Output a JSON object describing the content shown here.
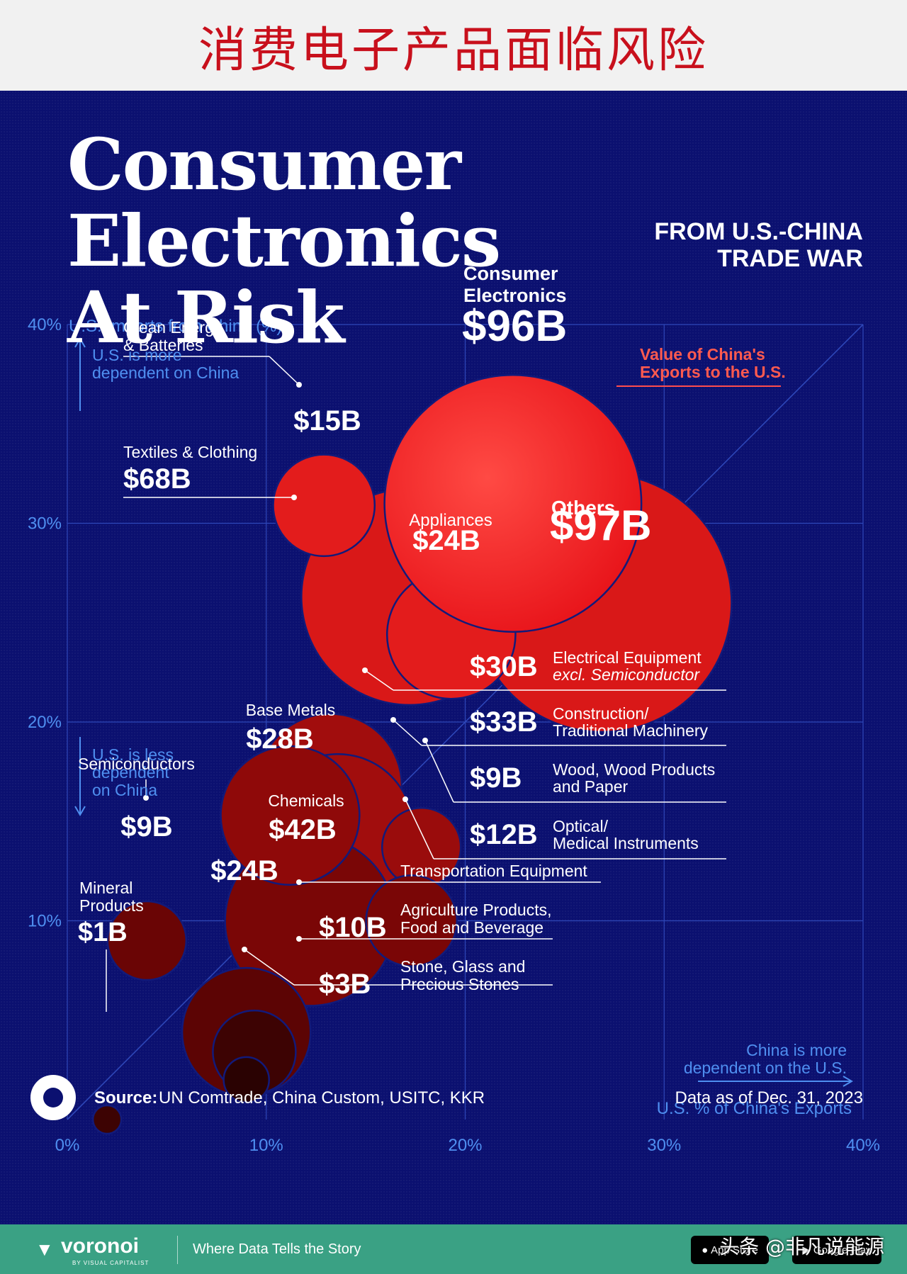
{
  "banner": {
    "title": "消费电子产品面临风险"
  },
  "header": {
    "title_line1": "Consumer Electronics",
    "title_line2": "At Risk",
    "subtitle_line1": "FROM U.S.-CHINA",
    "subtitle_line2": "TRADE WAR"
  },
  "annotations": {
    "y_axis_title": "U.S. Imports from China (%)",
    "more_dependent_us": [
      "U.S. is more",
      "dependent on China"
    ],
    "less_dependent_us": [
      "U.S. is less",
      "dependent",
      "on China"
    ],
    "china_dependent": [
      "China is more",
      "dependent on the U.S."
    ],
    "x_axis_title": "U.S. % of China's Exports",
    "value_legend": [
      "Value of China's",
      "Exports to the U.S."
    ]
  },
  "source": {
    "label": "Source:",
    "text": "UN Comtrade, China Custom, USITC, KKR",
    "date": "Data as of Dec. 31, 2023"
  },
  "footer": {
    "brand": "voronoi",
    "brand_sub": "BY VISUAL CAPITALIST",
    "tagline": "Where Data Tells the Story",
    "app_store": "App Store",
    "google_play": "Google Play",
    "watermark": "头条 @非凡说能源"
  },
  "colors": {
    "background": "#0b1070",
    "grid": "#2e47b8",
    "axis_label": "#4f8ff0",
    "top_red": "#f21b1b",
    "mid_red": "#d11717",
    "dark_red": "#7a0606",
    "darkest_red": "#3d0303"
  },
  "chart_data": {
    "type": "scatter",
    "xlabel": "U.S. % of China's Exports",
    "ylabel": "U.S. Imports from China (%)",
    "xlim": [
      0,
      40
    ],
    "ylim": [
      0,
      40
    ],
    "x_ticks": [
      "0%",
      "10%",
      "20%",
      "30%",
      "40%"
    ],
    "y_ticks": [
      "10%",
      "20%",
      "30%",
      "40%"
    ],
    "size_label": "Value of China's Exports to the U.S.",
    "grid": true,
    "points": [
      {
        "id": "consumer-electronics",
        "name": [
          "Consumer",
          "Electronics"
        ],
        "value": "$96B",
        "value_num": 96,
        "x": 22.4,
        "y": 31.0,
        "color": "#f21b1b"
      },
      {
        "id": "others",
        "name": [
          "Others"
        ],
        "value": "$97B",
        "value_num": 97,
        "x": 26.9,
        "y": 26.0,
        "color": "#d91818"
      },
      {
        "id": "textiles",
        "name": [
          "Textiles & Clothing"
        ],
        "value": "$68B",
        "value_num": 68,
        "x": 17.2,
        "y": 26.3,
        "color": "#d91818"
      },
      {
        "id": "clean-energy",
        "name": [
          "Clean Energy",
          "& Batteries"
        ],
        "value": "$15B",
        "value_num": 15,
        "x": 12.9,
        "y": 30.9,
        "color": "#e31c1c"
      },
      {
        "id": "appliances",
        "name": [
          "Appliances"
        ],
        "value": "$24B",
        "value_num": 24,
        "x": 19.3,
        "y": 24.4,
        "color": "#e31c1c"
      },
      {
        "id": "electrical-equipment",
        "name": [
          "Electrical Equipment",
          "excl. Semiconductor"
        ],
        "value": "$30B",
        "value_num": 30,
        "x": 13.2,
        "y": 16.8,
        "color": "#a10d0d"
      },
      {
        "id": "construction",
        "name": [
          "Construction/",
          "Traditional Machinery"
        ],
        "value": "$33B",
        "value_num": 33,
        "x": 13.6,
        "y": 14.6,
        "color": "#a10d0d"
      },
      {
        "id": "wood",
        "name": [
          "Wood, Wood Products",
          "and Paper"
        ],
        "value": "$9B",
        "value_num": 9,
        "x": 17.8,
        "y": 13.7,
        "color": "#9a0c0c"
      },
      {
        "id": "base-metals",
        "name": [
          "Base Metals"
        ],
        "value": "$28B",
        "value_num": 28,
        "x": 11.2,
        "y": 15.3,
        "color": "#8f0909"
      },
      {
        "id": "optical",
        "name": [
          "Optical/",
          "Medical Instruments"
        ],
        "value": "$12B",
        "value_num": 12,
        "x": 17.3,
        "y": 10.0,
        "color": "#7a0606"
      },
      {
        "id": "chemicals",
        "name": [
          "Chemicals"
        ],
        "value": "$42B",
        "value_num": 42,
        "x": 12.2,
        "y": 10.0,
        "color": "#7a0606"
      },
      {
        "id": "semiconductors",
        "name": [
          "Semiconductors"
        ],
        "value": "$9B",
        "value_num": 9,
        "x": 4.0,
        "y": 9.0,
        "color": "#6a0505"
      },
      {
        "id": "transportation",
        "name": [
          "Transportation Equipment"
        ],
        "value": "$24B",
        "value_num": 24,
        "x": 9.0,
        "y": 4.4,
        "color": "#5c0404"
      },
      {
        "id": "agriculture",
        "name": [
          "Agriculture Products,",
          "Food and Beverage"
        ],
        "value": "$10B",
        "value_num": 10,
        "x": 9.4,
        "y": 3.4,
        "color": "#3d0303"
      },
      {
        "id": "stone-glass",
        "name": [
          "Stone, Glass and",
          "Precious Stones"
        ],
        "value": "$3B",
        "value_num": 3,
        "x": 9.0,
        "y": 2.0,
        "color": "#2a0202"
      },
      {
        "id": "mineral",
        "name": [
          "Mineral",
          "Products"
        ],
        "value": "$1B",
        "value_num": 1,
        "x": 2.0,
        "y": 0.0,
        "color": "#3d0303"
      }
    ]
  }
}
